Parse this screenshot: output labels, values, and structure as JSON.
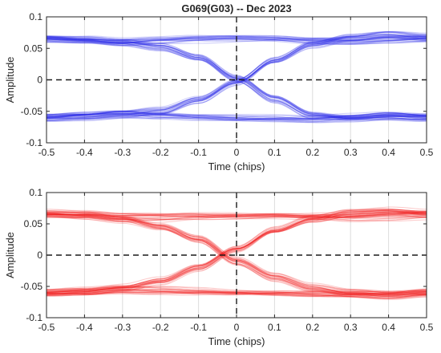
{
  "chart_data": [
    {
      "type": "line",
      "title": "G069(G03) -- Dec 2023",
      "xlabel": "Time (chips)",
      "ylabel": "Amplitude",
      "xlim": [
        -0.5,
        0.5
      ],
      "ylim": [
        -0.1,
        0.1
      ],
      "xticks": [
        "-0.5",
        "-0.4",
        "-0.3",
        "-0.2",
        "-0.1",
        "0",
        "0.1",
        "0.2",
        "0.3",
        "0.4",
        "0.5"
      ],
      "yticks": [
        "-0.1",
        "-0.05",
        "0",
        "0.05",
        "0.1"
      ],
      "grid": "vertical",
      "color": "#2a2ae6",
      "reference_lines": [
        {
          "axis": "y",
          "value": 0
        },
        {
          "axis": "x",
          "value": 0
        }
      ],
      "series": [
        {
          "x": [
            -0.5,
            -0.4,
            -0.3,
            -0.2,
            -0.1,
            0,
            0.1,
            0.2,
            0.3,
            0.4,
            0.5
          ],
          "y": [
            0.066,
            0.064,
            0.06,
            0.062,
            0.064,
            0.065,
            0.065,
            0.063,
            0.062,
            0.064,
            0.065
          ]
        },
        {
          "x": [
            -0.5,
            -0.4,
            -0.3,
            -0.2,
            -0.1,
            0,
            0.1,
            0.2,
            0.3,
            0.4,
            0.5
          ],
          "y": [
            -0.06,
            -0.058,
            -0.055,
            -0.058,
            -0.06,
            -0.061,
            -0.061,
            -0.062,
            -0.06,
            -0.057,
            -0.06
          ]
        },
        {
          "x": [
            -0.5,
            -0.4,
            -0.3,
            -0.2,
            -0.1,
            0,
            0.1,
            0.2,
            0.3,
            0.4,
            0.5
          ],
          "y": [
            0.066,
            0.064,
            0.06,
            0.052,
            0.035,
            0.002,
            -0.03,
            -0.055,
            -0.06,
            -0.058,
            -0.06
          ]
        },
        {
          "x": [
            -0.5,
            -0.4,
            -0.3,
            -0.2,
            -0.1,
            0,
            0.1,
            0.2,
            0.3,
            0.4,
            0.5
          ],
          "y": [
            -0.06,
            -0.058,
            -0.055,
            -0.05,
            -0.032,
            -0.004,
            0.03,
            0.055,
            0.066,
            0.071,
            0.067
          ]
        }
      ]
    },
    {
      "type": "line",
      "title": "",
      "xlabel": "Time (chips)",
      "ylabel": "Amplitude",
      "xlim": [
        -0.5,
        0.5
      ],
      "ylim": [
        -0.1,
        0.1
      ],
      "xticks": [
        "-0.5",
        "-0.4",
        "-0.3",
        "-0.2",
        "-0.1",
        "0",
        "0.1",
        "0.2",
        "0.3",
        "0.4",
        "0.5"
      ],
      "yticks": [
        "-0.1",
        "-0.05",
        "0",
        "0.05",
        "0.1"
      ],
      "grid": "vertical",
      "color": "#f01818",
      "reference_lines": [
        {
          "axis": "y",
          "value": 0
        },
        {
          "axis": "x",
          "value": 0
        }
      ],
      "series": [
        {
          "x": [
            -0.5,
            -0.4,
            -0.3,
            -0.2,
            -0.1,
            0,
            0.1,
            0.2,
            0.3,
            0.4,
            0.5
          ],
          "y": [
            0.066,
            0.064,
            0.06,
            0.06,
            0.062,
            0.063,
            0.064,
            0.062,
            0.06,
            0.062,
            0.064
          ]
        },
        {
          "x": [
            -0.5,
            -0.4,
            -0.3,
            -0.2,
            -0.1,
            0,
            0.1,
            0.2,
            0.3,
            0.4,
            0.5
          ],
          "y": [
            -0.06,
            -0.058,
            -0.055,
            -0.056,
            -0.058,
            -0.06,
            -0.061,
            -0.062,
            -0.062,
            -0.064,
            -0.06
          ]
        },
        {
          "x": [
            -0.5,
            -0.4,
            -0.3,
            -0.2,
            -0.1,
            0,
            0.1,
            0.2,
            0.3,
            0.4,
            0.5
          ],
          "y": [
            0.066,
            0.064,
            0.058,
            0.045,
            0.025,
            -0.01,
            -0.035,
            -0.052,
            -0.06,
            -0.062,
            -0.06
          ]
        },
        {
          "x": [
            -0.5,
            -0.4,
            -0.3,
            -0.2,
            -0.1,
            0,
            0.1,
            0.2,
            0.3,
            0.4,
            0.5
          ],
          "y": [
            -0.06,
            -0.058,
            -0.053,
            -0.042,
            -0.02,
            0.01,
            0.04,
            0.058,
            0.068,
            0.07,
            0.066
          ]
        }
      ]
    }
  ]
}
